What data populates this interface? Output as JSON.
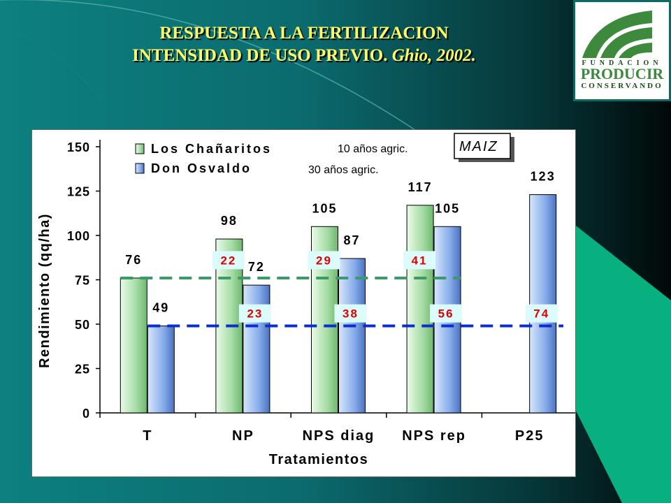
{
  "slide": {
    "title_line1": "RESPUESTA A LA FERTILIZACION",
    "title_line2": "INTENSIDAD DE USO PREVIO.",
    "title_citation": "Ghio, 2002."
  },
  "logo": {
    "line1": "FUNDACION",
    "line2": "PRODUCIR",
    "line3": "CONSERVANDO"
  },
  "colors": {
    "series1": "#9ed89e",
    "series2": "#7aa3e0",
    "green_dashed": "#3a9a6a",
    "blue_dashed": "#0a2fd0",
    "response_label_red": "#e00000"
  },
  "chart_data": {
    "type": "bar",
    "title": "",
    "crop_label": "MAIZ",
    "xlabel": "Tratamientos",
    "ylabel": "Rendimiento (qq/ha)",
    "ylim": [
      0,
      150
    ],
    "yticks": [
      0,
      25,
      50,
      75,
      100,
      125,
      150
    ],
    "categories": [
      "T",
      "NP",
      "NPS diag",
      "NPS rep",
      "P25"
    ],
    "series": [
      {
        "name": "Los Chañaritos",
        "note": "10 años agric.",
        "values": [
          76,
          98,
          105,
          117,
          null
        ]
      },
      {
        "name": "Don Osvaldo",
        "note": "30 años agric.",
        "values": [
          49,
          72,
          87,
          105,
          123
        ]
      }
    ],
    "response_labels": {
      "Los Chañaritos": [
        null,
        "22",
        "29",
        "41",
        null
      ],
      "Don Osvaldo": [
        null,
        "23",
        "38",
        "56",
        "74"
      ]
    },
    "reference_lines": [
      {
        "series": "Los Chañaritos",
        "value": 76,
        "style": "dashed"
      },
      {
        "series": "Don Osvaldo",
        "value": 49,
        "style": "dashed"
      }
    ],
    "grid": false,
    "legend": "top-left"
  }
}
